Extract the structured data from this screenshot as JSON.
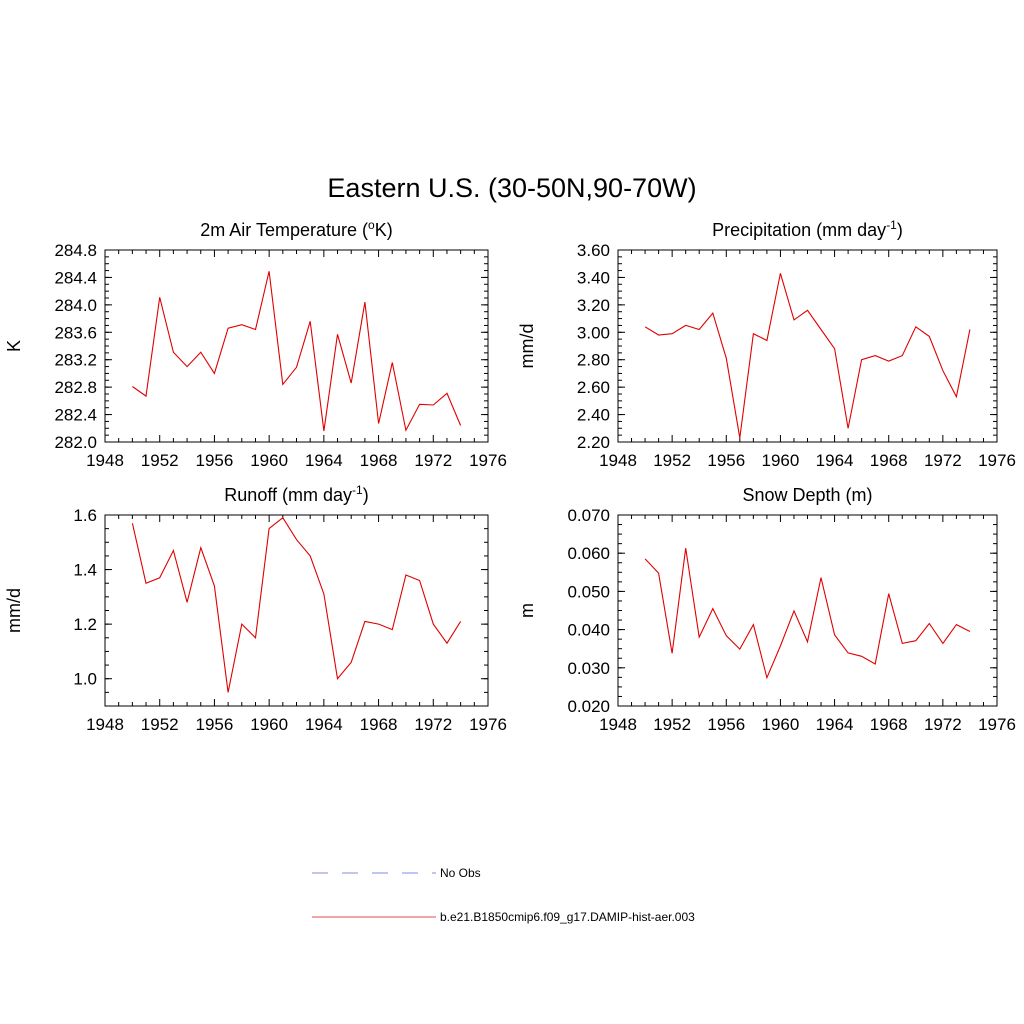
{
  "figure_title": "Eastern U.S. (30-50N,90-70W)",
  "legend": [
    {
      "label": "No Obs",
      "color": "#9aa3e6",
      "dash": true
    },
    {
      "label": "b.e21.B1850cmip6.f09_g17.DAMIP-hist-aer.003",
      "color": "#e8706f",
      "dash": false
    }
  ],
  "series_color": "#e00000",
  "chart_data": [
    {
      "type": "line",
      "title": "2m Air Temperature (",
      "title_sup": "o",
      "title_after_sup": "K)",
      "title_sup_is_super": true,
      "ylabel": "K",
      "xlim": [
        1948,
        1976
      ],
      "ylim": [
        282.0,
        284.8
      ],
      "xticks": [
        "1948",
        "1952",
        "1956",
        "1960",
        "1964",
        "1968",
        "1972",
        "1976"
      ],
      "yticks": [
        "282.0",
        "282.4",
        "282.8",
        "283.2",
        "283.6",
        "284.0",
        "284.4",
        "284.8"
      ],
      "x": [
        1950,
        1951,
        1952,
        1953,
        1954,
        1955,
        1956,
        1957,
        1958,
        1959,
        1960,
        1961,
        1962,
        1963,
        1964,
        1965,
        1966,
        1967,
        1968,
        1969,
        1970,
        1971,
        1972,
        1973,
        1974
      ],
      "y": [
        282.81,
        282.67,
        284.11,
        283.31,
        283.1,
        283.31,
        283.0,
        283.66,
        283.71,
        283.64,
        284.49,
        282.84,
        283.09,
        283.76,
        282.16,
        283.57,
        282.86,
        284.04,
        282.27,
        283.16,
        282.17,
        282.55,
        282.54,
        282.71,
        282.24
      ]
    },
    {
      "type": "line",
      "title": "Precipitation (mm day",
      "title_sup": "-1",
      "title_after_sup": ")",
      "title_sup_is_super": true,
      "ylabel": "mm/d",
      "xlim": [
        1948,
        1976
      ],
      "ylim": [
        2.2,
        3.6
      ],
      "xticks": [
        "1948",
        "1952",
        "1956",
        "1960",
        "1964",
        "1968",
        "1972",
        "1976"
      ],
      "yticks": [
        "2.20",
        "2.40",
        "2.60",
        "2.80",
        "3.00",
        "3.20",
        "3.40",
        "3.60"
      ],
      "x": [
        1950,
        1951,
        1952,
        1953,
        1954,
        1955,
        1956,
        1957,
        1958,
        1959,
        1960,
        1961,
        1962,
        1963,
        1964,
        1965,
        1966,
        1967,
        1968,
        1969,
        1970,
        1971,
        1972,
        1973,
        1974
      ],
      "y": [
        3.04,
        2.98,
        2.99,
        3.05,
        3.02,
        3.14,
        2.81,
        2.23,
        2.99,
        2.94,
        3.43,
        3.09,
        3.16,
        3.02,
        2.88,
        2.3,
        2.8,
        2.83,
        2.79,
        2.83,
        3.04,
        2.97,
        2.72,
        2.53,
        3.02
      ]
    },
    {
      "type": "line",
      "title": "Runoff (mm day",
      "title_sup": "-1",
      "title_after_sup": ")",
      "title_sup_is_super": true,
      "ylabel": "mm/d",
      "xlim": [
        1948,
        1976
      ],
      "ylim": [
        0.9,
        1.6
      ],
      "xticks": [
        "1948",
        "1952",
        "1956",
        "1960",
        "1964",
        "1968",
        "1972",
        "1976"
      ],
      "yticks": [
        "1.0",
        "1.2",
        "1.4",
        "1.6"
      ],
      "ytick_values": [
        1.0,
        1.2,
        1.4,
        1.6
      ],
      "x": [
        1950,
        1951,
        1952,
        1953,
        1954,
        1955,
        1956,
        1957,
        1958,
        1959,
        1960,
        1961,
        1962,
        1963,
        1964,
        1965,
        1966,
        1967,
        1968,
        1969,
        1970,
        1971,
        1972,
        1973,
        1974
      ],
      "y": [
        1.57,
        1.35,
        1.37,
        1.47,
        1.28,
        1.48,
        1.34,
        0.95,
        1.2,
        1.15,
        1.55,
        1.59,
        1.51,
        1.45,
        1.31,
        1.0,
        1.06,
        1.21,
        1.2,
        1.18,
        1.38,
        1.36,
        1.2,
        1.13,
        1.21
      ]
    },
    {
      "type": "line",
      "title": "Snow Depth (m)",
      "title_sup": "",
      "title_after_sup": "",
      "title_sup_is_super": false,
      "ylabel": "m",
      "xlim": [
        1948,
        1976
      ],
      "ylim": [
        0.02,
        0.07
      ],
      "xticks": [
        "1948",
        "1952",
        "1956",
        "1960",
        "1964",
        "1968",
        "1972",
        "1976"
      ],
      "yticks": [
        "0.020",
        "0.030",
        "0.040",
        "0.050",
        "0.060",
        "0.070"
      ],
      "x": [
        1950,
        1951,
        1952,
        1953,
        1954,
        1955,
        1956,
        1957,
        1958,
        1959,
        1960,
        1961,
        1962,
        1963,
        1964,
        1965,
        1966,
        1967,
        1968,
        1969,
        1970,
        1971,
        1972,
        1973,
        1974
      ],
      "y": [
        0.0585,
        0.0548,
        0.0338,
        0.0613,
        0.038,
        0.0455,
        0.0384,
        0.0349,
        0.0413,
        0.0274,
        0.0357,
        0.0449,
        0.0368,
        0.0536,
        0.0386,
        0.0339,
        0.033,
        0.031,
        0.0494,
        0.0364,
        0.0371,
        0.0416,
        0.0364,
        0.0413,
        0.0395
      ]
    }
  ]
}
